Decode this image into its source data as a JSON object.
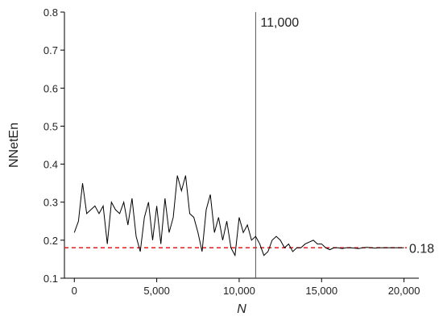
{
  "chart_data": {
    "type": "line",
    "x_label": "N",
    "y_label": "NNetEn",
    "x": [
      0,
      250,
      500,
      750,
      1000,
      1250,
      1500,
      1750,
      2000,
      2250,
      2500,
      2750,
      3000,
      3250,
      3500,
      3750,
      4000,
      4250,
      4500,
      4750,
      5000,
      5250,
      5500,
      5750,
      6000,
      6250,
      6500,
      6750,
      7000,
      7250,
      7500,
      7750,
      8000,
      8250,
      8500,
      8750,
      9000,
      9250,
      9500,
      9750,
      10000,
      10250,
      10500,
      10750,
      11000,
      11250,
      11500,
      11750,
      12000,
      12250,
      12500,
      12750,
      13000,
      13250,
      13500,
      13750,
      14000,
      14250,
      14500,
      14750,
      15000,
      15250,
      15500,
      15750,
      16000,
      16250,
      16500,
      16750,
      17000,
      17250,
      17500,
      17750,
      18000,
      18250,
      18500,
      18750,
      19000,
      19250,
      19500,
      19750,
      20000
    ],
    "values": [
      0.22,
      0.25,
      0.35,
      0.27,
      0.28,
      0.29,
      0.27,
      0.29,
      0.19,
      0.3,
      0.28,
      0.27,
      0.3,
      0.24,
      0.31,
      0.21,
      0.17,
      0.26,
      0.3,
      0.2,
      0.29,
      0.19,
      0.31,
      0.22,
      0.26,
      0.37,
      0.33,
      0.37,
      0.27,
      0.26,
      0.22,
      0.17,
      0.28,
      0.32,
      0.22,
      0.26,
      0.2,
      0.25,
      0.18,
      0.16,
      0.26,
      0.22,
      0.24,
      0.2,
      0.21,
      0.19,
      0.16,
      0.17,
      0.2,
      0.21,
      0.2,
      0.18,
      0.19,
      0.17,
      0.18,
      0.18,
      0.19,
      0.195,
      0.2,
      0.19,
      0.19,
      0.18,
      0.175,
      0.18,
      0.18,
      0.178,
      0.18,
      0.18,
      0.179,
      0.178,
      0.18,
      0.181,
      0.18,
      0.179,
      0.18,
      0.18,
      0.18,
      0.18,
      0.18,
      0.18,
      0.18
    ],
    "color": "#000000",
    "xlim": [
      -600,
      20900
    ],
    "ylim": [
      0.1,
      0.8
    ],
    "xticks": [
      0,
      {
        "value": 5000,
        "label": "5,000"
      },
      {
        "value": 10000,
        "label": "10,000"
      },
      {
        "value": 15000,
        "label": "15,000"
      },
      {
        "value": 20000,
        "label": "20,000"
      }
    ],
    "yticks": [
      0.1,
      0.2,
      0.3,
      0.4,
      0.5,
      0.6,
      0.7,
      0.8
    ],
    "vlines": [
      {
        "value": 11000,
        "label": "11,000",
        "color": "#555555"
      }
    ],
    "hlines": [
      {
        "value": 0.18,
        "label": "0.18",
        "color": "#e8191c"
      }
    ]
  }
}
